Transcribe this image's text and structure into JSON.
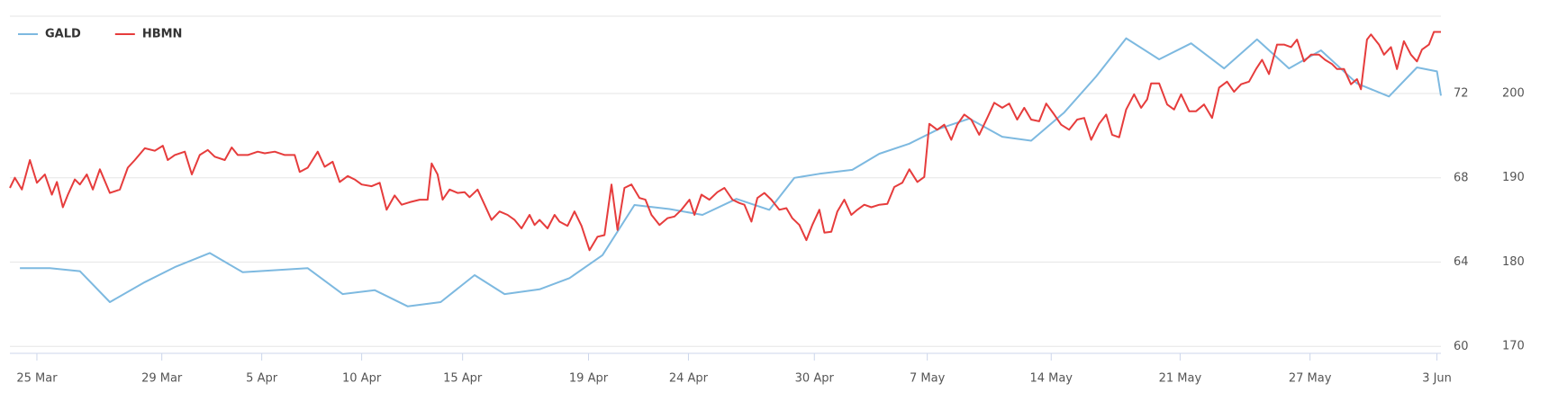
{
  "chart_data": {
    "type": "line",
    "xlim": [
      -1.08,
      56.2
    ],
    "xticks": [
      {
        "value": 0,
        "label": "25 Mar"
      },
      {
        "value": 5,
        "label": "29 Mar"
      },
      {
        "value": 9,
        "label": "5 Apr"
      },
      {
        "value": 13,
        "label": "10 Apr"
      },
      {
        "value": 17.04,
        "label": "15 Apr"
      },
      {
        "value": 22.08,
        "label": "19 Apr"
      },
      {
        "value": 26.08,
        "label": "24 Apr"
      },
      {
        "value": 31.12,
        "label": "30 Apr"
      },
      {
        "value": 35.64,
        "label": "7 May"
      },
      {
        "value": 40.6,
        "label": "14 May"
      },
      {
        "value": 45.76,
        "label": "21 May"
      },
      {
        "value": 50.96,
        "label": "27 May"
      },
      {
        "value": 56.04,
        "label": "3 Jun"
      }
    ],
    "ylim": [
      59.67,
      75.67
    ],
    "yticks": [
      60,
      64,
      68,
      72
    ],
    "y2lim": [
      169.17,
      209.17
    ],
    "y2ticks": [
      170,
      180,
      190,
      200
    ],
    "grid": true,
    "legend": "top-left",
    "series": [
      {
        "name": "GALD",
        "color": "#7db9e0",
        "x": [
          -0.68,
          0.52,
          1.72,
          2.92,
          4.32,
          5.52,
          6.92,
          8.24,
          10.84,
          12.24,
          13.52,
          14.84,
          16.16,
          17.52,
          18.72,
          20.12,
          21.32,
          22.64,
          23.92,
          25.32,
          26.64,
          28,
          29.32,
          30.32,
          31.32,
          32.64,
          33.72,
          34.92,
          36.12,
          37.32,
          38.64,
          39.8,
          41.12,
          42.4,
          43.6,
          44.92,
          46.2,
          47.52,
          48.84,
          50.12,
          51.4,
          52.84,
          54.12,
          55.24,
          56.04,
          56.2
        ],
        "values": [
          63.71,
          63.71,
          63.57,
          62.1,
          63.05,
          63.76,
          64.43,
          63.52,
          63.71,
          62.48,
          62.67,
          61.9,
          62.1,
          63.38,
          62.48,
          62.71,
          63.24,
          64.33,
          66.71,
          66.52,
          66.24,
          67.0,
          66.48,
          68.0,
          68.19,
          68.38,
          69.14,
          69.62,
          70.33,
          70.81,
          69.95,
          69.76,
          71.1,
          72.81,
          74.62,
          73.62,
          74.38,
          73.19,
          74.57,
          73.19,
          74.05,
          72.48,
          71.86,
          73.24,
          73.05,
          71.9
        ]
      },
      {
        "name": "HBMN",
        "color": "#e63c3c",
        "axis": "y2",
        "x": [
          -1.08,
          -0.88,
          -0.6,
          -0.28,
          0,
          0.32,
          0.6,
          0.8,
          1.04,
          1.24,
          1.52,
          1.72,
          2,
          2.24,
          2.52,
          2.92,
          3.32,
          3.64,
          3.92,
          4.32,
          4.72,
          5.04,
          5.24,
          5.52,
          5.92,
          6.2,
          6.52,
          6.84,
          7.12,
          7.52,
          7.8,
          8.04,
          8.44,
          8.84,
          9.12,
          9.52,
          9.92,
          10.32,
          10.52,
          10.84,
          11.24,
          11.52,
          11.84,
          12.12,
          12.44,
          12.72,
          13,
          13.4,
          13.72,
          14,
          14.32,
          14.6,
          14.92,
          15.32,
          15.64,
          15.8,
          16.04,
          16.24,
          16.52,
          16.84,
          17.12,
          17.32,
          17.64,
          17.92,
          18.2,
          18.52,
          18.84,
          19.12,
          19.4,
          19.72,
          19.92,
          20.12,
          20.44,
          20.72,
          20.92,
          21.24,
          21.52,
          21.8,
          22.12,
          22.44,
          22.72,
          23,
          23.24,
          23.52,
          23.8,
          24.12,
          24.36,
          24.6,
          24.92,
          25.24,
          25.52,
          25.8,
          26.12,
          26.32,
          26.6,
          26.92,
          27.24,
          27.52,
          27.84,
          28.12,
          28.32,
          28.6,
          28.84,
          29.12,
          29.4,
          29.72,
          30,
          30.24,
          30.52,
          30.8,
          31.04,
          31.32,
          31.52,
          31.8,
          32.04,
          32.32,
          32.6,
          32.84,
          33.12,
          33.4,
          33.72,
          34.04,
          34.32,
          34.64,
          34.92,
          35.24,
          35.52,
          35.72,
          36.04,
          36.32,
          36.6,
          36.84,
          37.12,
          37.4,
          37.72,
          38.04,
          38.32,
          38.64,
          38.92,
          39.24,
          39.52,
          39.8,
          40.12,
          40.4,
          40.72,
          41,
          41.32,
          41.64,
          41.92,
          42.2,
          42.52,
          42.8,
          43.04,
          43.32,
          43.6,
          43.92,
          44.2,
          44.44,
          44.6,
          44.92,
          45.24,
          45.52,
          45.8,
          46.12,
          46.4,
          46.72,
          47.04,
          47.32,
          47.64,
          47.92,
          48.2,
          48.52,
          48.8,
          49.04,
          49.32,
          49.64,
          49.92,
          50.2,
          50.44,
          50.72,
          51,
          51.32,
          51.56,
          51.84,
          52.04,
          52.32,
          52.6,
          52.84,
          53,
          53.24,
          53.4,
          53.72,
          53.92,
          54.2,
          54.44,
          54.72,
          55,
          55.24,
          55.44,
          55.72,
          55.92,
          56.2
        ],
        "values": [
          188.8,
          190.0,
          188.6,
          192.1,
          189.4,
          190.4,
          188.0,
          189.5,
          186.5,
          188.0,
          189.8,
          189.2,
          190.4,
          188.6,
          191.0,
          188.2,
          188.6,
          191.2,
          192.1,
          193.5,
          193.2,
          193.8,
          192.1,
          192.7,
          193.1,
          190.4,
          192.7,
          193.3,
          192.5,
          192.1,
          193.6,
          192.7,
          192.7,
          193.1,
          192.9,
          193.1,
          192.7,
          192.7,
          190.7,
          191.2,
          193.1,
          191.3,
          191.9,
          189.5,
          190.2,
          189.8,
          189.2,
          189.0,
          189.4,
          186.2,
          187.9,
          186.8,
          187.1,
          187.4,
          187.4,
          191.7,
          190.4,
          187.4,
          188.6,
          188.2,
          188.3,
          187.7,
          188.6,
          186.8,
          185.0,
          186.0,
          185.6,
          185.0,
          184.0,
          185.6,
          184.4,
          185.0,
          184.0,
          185.6,
          184.8,
          184.3,
          186.0,
          184.3,
          181.4,
          183.0,
          183.2,
          189.2,
          183.8,
          188.8,
          189.2,
          187.6,
          187.4,
          185.6,
          184.4,
          185.2,
          185.4,
          186.2,
          187.4,
          185.6,
          188.0,
          187.4,
          188.3,
          188.8,
          187.4,
          187.0,
          186.8,
          184.8,
          187.6,
          188.2,
          187.4,
          186.2,
          186.4,
          185.2,
          184.4,
          182.6,
          184.4,
          186.2,
          183.5,
          183.6,
          186.0,
          187.4,
          185.6,
          186.2,
          186.8,
          186.5,
          186.8,
          186.9,
          188.9,
          189.4,
          191.0,
          189.5,
          190.1,
          196.4,
          195.7,
          196.3,
          194.5,
          196.3,
          197.5,
          196.9,
          195.1,
          197.1,
          198.9,
          198.3,
          198.8,
          196.9,
          198.3,
          196.9,
          196.7,
          198.8,
          197.5,
          196.3,
          195.7,
          196.9,
          197.1,
          194.5,
          196.4,
          197.5,
          195.1,
          194.8,
          198.1,
          199.9,
          198.3,
          199.3,
          201.2,
          201.2,
          198.7,
          198.1,
          199.9,
          197.9,
          197.9,
          198.7,
          197.1,
          200.7,
          201.4,
          200.2,
          201.1,
          201.4,
          202.9,
          204.0,
          202.3,
          205.8,
          205.8,
          205.5,
          206.4,
          203.8,
          204.6,
          204.6,
          204.0,
          203.5,
          202.9,
          202.9,
          201.1,
          201.7,
          200.5,
          206.4,
          207.0,
          205.8,
          204.6,
          205.5,
          202.9,
          206.2,
          204.6,
          203.8,
          205.2,
          205.8,
          207.3,
          207.3
        ]
      }
    ]
  }
}
